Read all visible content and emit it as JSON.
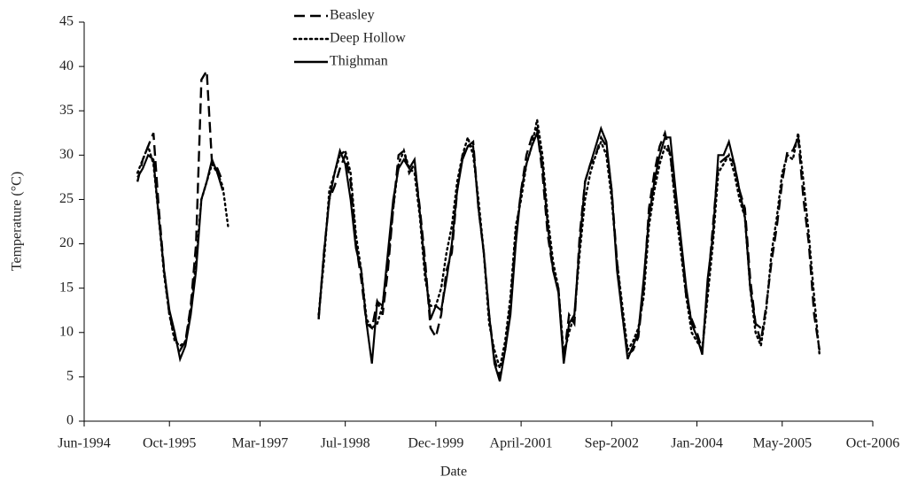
{
  "chart_data": {
    "type": "line",
    "x_label": "Date",
    "y_label": "Temperature (°C)",
    "xlim": [
      "1994-06",
      "2006-10"
    ],
    "xticks": [
      {
        "value": "1994-06",
        "label": "Jun-1994"
      },
      {
        "value": "1995-10",
        "label": "Oct-1995"
      },
      {
        "value": "1997-03",
        "label": "Mar-1997"
      },
      {
        "value": "1998-07",
        "label": "Jul-1998"
      },
      {
        "value": "1999-12",
        "label": "Dec-1999"
      },
      {
        "value": "2001-04",
        "label": "April-2001"
      },
      {
        "value": "2002-09",
        "label": "Sep-2002"
      },
      {
        "value": "2004-01",
        "label": "Jan-2004"
      },
      {
        "value": "2005-05",
        "label": "May-2005"
      },
      {
        "value": "2006-10",
        "label": "Oct-2006"
      }
    ],
    "ylim": [
      0,
      45
    ],
    "yticks": [
      0,
      5,
      10,
      15,
      20,
      25,
      30,
      35,
      40,
      45
    ],
    "grid": false,
    "legend": "top",
    "x": [
      "1995-04",
      "1995-05",
      "1995-06",
      "1995-07",
      "1995-08",
      "1995-09",
      "1995-10",
      "1995-11",
      "1995-12",
      "1996-01",
      "1996-02",
      "1996-03",
      "1996-04",
      "1996-05",
      "1996-06",
      "1996-07",
      "1996-08",
      "1996-09",
      "1996-10",
      "1996-11",
      "1996-12",
      "1997-01",
      "1997-02",
      "1997-03",
      "1997-04",
      "1997-05",
      "1997-06",
      "1997-07",
      "1997-08",
      "1997-09",
      "1997-10",
      "1997-11",
      "1997-12",
      "1998-01",
      "1998-02",
      "1998-03",
      "1998-04",
      "1998-05",
      "1998-06",
      "1998-07",
      "1998-08",
      "1998-09",
      "1998-10",
      "1998-11",
      "1998-12",
      "1999-01",
      "1999-02",
      "1999-03",
      "1999-04",
      "1999-05",
      "1999-06",
      "1999-07",
      "1999-08",
      "1999-09",
      "1999-10",
      "1999-11",
      "1999-12",
      "2000-01",
      "2000-02",
      "2000-03",
      "2000-04",
      "2000-05",
      "2000-06",
      "2000-07",
      "2000-08",
      "2000-09",
      "2000-10",
      "2000-11",
      "2000-12",
      "2001-01",
      "2001-02",
      "2001-03",
      "2001-04",
      "2001-05",
      "2001-06",
      "2001-07",
      "2001-08",
      "2001-09",
      "2001-10",
      "2001-11",
      "2001-12",
      "2002-01",
      "2002-02",
      "2002-03",
      "2002-04",
      "2002-05",
      "2002-06",
      "2002-07",
      "2002-08",
      "2002-09",
      "2002-10",
      "2002-11",
      "2002-12",
      "2003-01",
      "2003-02",
      "2003-03",
      "2003-04",
      "2003-05",
      "2003-06",
      "2003-07",
      "2003-08",
      "2003-09",
      "2003-10",
      "2003-11",
      "2003-12",
      "2004-01",
      "2004-02",
      "2004-03",
      "2004-04",
      "2004-05",
      "2004-06",
      "2004-07",
      "2004-08",
      "2004-09",
      "2004-10",
      "2004-11",
      "2004-12",
      "2005-01",
      "2005-02",
      "2005-03",
      "2005-04",
      "2005-05",
      "2005-06",
      "2005-07",
      "2005-08",
      "2005-09",
      "2005-10",
      "2005-11",
      "2005-12"
    ],
    "series": [
      {
        "name": "Beasley",
        "color": "#000000",
        "dash": "dashed",
        "values": [
          27,
          29.5,
          31,
          32.5,
          24,
          17,
          12,
          9.5,
          8,
          9,
          13,
          20,
          38.5,
          39.5,
          29,
          28.5,
          27,
          null,
          null,
          null,
          null,
          null,
          null,
          null,
          null,
          null,
          null,
          null,
          null,
          null,
          null,
          null,
          null,
          null,
          11.5,
          19,
          25,
          26.5,
          28.5,
          30,
          27,
          20,
          16,
          11,
          10.5,
          13.5,
          12,
          17,
          24,
          30,
          30.5,
          28,
          29,
          24,
          18,
          10.5,
          9.5,
          12,
          17,
          19,
          26,
          30,
          31,
          31.5,
          24,
          19,
          12,
          7,
          5,
          8,
          13,
          21,
          26,
          30,
          32,
          33,
          28,
          21,
          17,
          15,
          7,
          12,
          11,
          21,
          27,
          29,
          30,
          32,
          31,
          26,
          18,
          12,
          7.5,
          8,
          9.5,
          15,
          24,
          28,
          31,
          32.5,
          30,
          25,
          20,
          14,
          11.5,
          10,
          8,
          15,
          22,
          29,
          29.5,
          30,
          29,
          26,
          24,
          16,
          11,
          9,
          13,
          18,
          22,
          27,
          30.5,
          30.5,
          32,
          25,
          20,
          12,
          8
        ]
      },
      {
        "name": "Deep Hollow",
        "color": "#000000",
        "dash": "dotted",
        "values": [
          28,
          29.5,
          31,
          29,
          23,
          16.5,
          12,
          9,
          8.5,
          9,
          12.5,
          18,
          25,
          27,
          29,
          28,
          26.5,
          22,
          null,
          null,
          null,
          null,
          null,
          null,
          null,
          null,
          null,
          null,
          null,
          null,
          null,
          null,
          null,
          null,
          12,
          18,
          26,
          28,
          30,
          30.5,
          28,
          21,
          17,
          11.5,
          10.5,
          11,
          13,
          18,
          24,
          29,
          30.5,
          28.5,
          28,
          23,
          16,
          13,
          13,
          15,
          19,
          22,
          27,
          30,
          32,
          30,
          25,
          19,
          11,
          8,
          6,
          9,
          14,
          22,
          25,
          29,
          31,
          34,
          30,
          23,
          18,
          15,
          7.5,
          10,
          12,
          19,
          25,
          28,
          30,
          31.5,
          30,
          25,
          18,
          13,
          8,
          9,
          10.5,
          14,
          22,
          26,
          29,
          31,
          30,
          24,
          19,
          14,
          10,
          9,
          8,
          14,
          20,
          28,
          29,
          30,
          28,
          25,
          23,
          15,
          10,
          8.5,
          12.5,
          19,
          23,
          28,
          30,
          29.5,
          32.5,
          27,
          21,
          14,
          7.5
        ]
      },
      {
        "name": "Thighman",
        "color": "#000000",
        "dash": "solid",
        "values": [
          27.5,
          28.5,
          30,
          29.5,
          23,
          17,
          12.5,
          10,
          7,
          8.5,
          12,
          17,
          25,
          27,
          29.5,
          28,
          26,
          null,
          null,
          null,
          null,
          null,
          null,
          null,
          null,
          null,
          null,
          null,
          null,
          null,
          null,
          null,
          null,
          null,
          11.5,
          19,
          25,
          28,
          30.5,
          29,
          25,
          19.5,
          17,
          11,
          6.5,
          13.5,
          13,
          19,
          25,
          28.5,
          29.5,
          28.5,
          29.5,
          23.5,
          17,
          11.5,
          13,
          12.5,
          16,
          20,
          26,
          29.5,
          31,
          31,
          24,
          19,
          12,
          6.5,
          4.5,
          8,
          12,
          20,
          26,
          29,
          31,
          32.5,
          29,
          22,
          17,
          14.5,
          6.5,
          11,
          12,
          20,
          27,
          29,
          31,
          33,
          31.5,
          26,
          17,
          12,
          7,
          8.5,
          10,
          16,
          23,
          27,
          30,
          32,
          32,
          26,
          20.5,
          15,
          11,
          9.5,
          7.5,
          16,
          21,
          30,
          30,
          31.5,
          29,
          26,
          23,
          15,
          11,
          10.5,
          null,
          null,
          null,
          null,
          null,
          null,
          null,
          null,
          null,
          null,
          null
        ]
      }
    ]
  }
}
